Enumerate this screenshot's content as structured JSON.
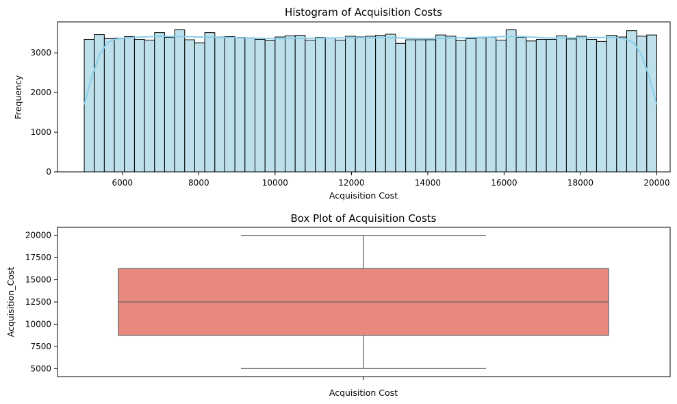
{
  "chart_data": [
    {
      "type": "bar",
      "subtype": "histogram-with-kde",
      "title": "Histogram of Acquisition Costs",
      "xlabel": "Acquisition Cost",
      "ylabel": "Frequency",
      "xlim": [
        4300,
        20350
      ],
      "ylim": [
        0,
        3780
      ],
      "xticks": [
        6000,
        8000,
        10000,
        12000,
        14000,
        16000,
        18000,
        20000
      ],
      "yticks": [
        0,
        1000,
        2000,
        3000
      ],
      "bin_start": 5000,
      "bin_end": 20000,
      "values": [
        3340,
        3460,
        3360,
        3370,
        3410,
        3340,
        3320,
        3510,
        3390,
        3580,
        3330,
        3250,
        3510,
        3400,
        3410,
        3390,
        3380,
        3340,
        3310,
        3400,
        3430,
        3440,
        3320,
        3390,
        3380,
        3320,
        3420,
        3400,
        3420,
        3440,
        3470,
        3240,
        3330,
        3330,
        3330,
        3450,
        3420,
        3310,
        3360,
        3380,
        3390,
        3320,
        3580,
        3390,
        3300,
        3340,
        3340,
        3430,
        3350,
        3420,
        3340,
        3290,
        3440,
        3400,
        3560,
        3420,
        3450
      ],
      "kde": {
        "x": [
          5000,
          5200,
          5400,
          5600,
          5800,
          6000,
          6500,
          7000,
          7500,
          8000,
          8500,
          9000,
          9500,
          10000,
          11000,
          12000,
          13000,
          14000,
          15000,
          16000,
          16500,
          17000,
          17500,
          18000,
          18500,
          19000,
          19200,
          19400,
          19600,
          19800,
          20000
        ],
        "y": [
          1700,
          2400,
          2950,
          3250,
          3340,
          3370,
          3400,
          3420,
          3410,
          3400,
          3390,
          3380,
          3370,
          3360,
          3370,
          3380,
          3380,
          3360,
          3380,
          3410,
          3410,
          3380,
          3370,
          3380,
          3390,
          3380,
          3340,
          3250,
          2950,
          2400,
          1700
        ]
      },
      "bar_color": "#add8e6",
      "kde_color": "#87ceeb",
      "grid": false
    },
    {
      "type": "box",
      "title": "Box Plot of Acquisition Costs",
      "xlabel": "Acquisition Cost",
      "ylabel": "Acquisition_Cost",
      "ylim": [
        4100,
        20900
      ],
      "yticks": [
        5000,
        7500,
        10000,
        12500,
        15000,
        17500,
        20000
      ],
      "whisker_low": 5000,
      "q1": 8750,
      "median": 12500,
      "q3": 16250,
      "whisker_high": 20000,
      "box_color": "#e8897e",
      "grid": false
    }
  ]
}
